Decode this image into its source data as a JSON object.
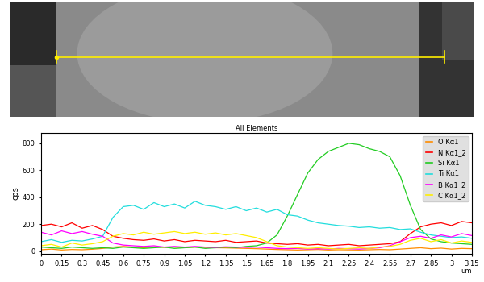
{
  "chart_data": {
    "type": "line",
    "title": "All Elements",
    "y_label": "cps",
    "x_label": "um",
    "x": [
      0,
      0.075,
      0.15,
      0.225,
      0.3,
      0.375,
      0.45,
      0.525,
      0.6,
      0.675,
      0.75,
      0.825,
      0.9,
      0.975,
      1.05,
      1.125,
      1.2,
      1.275,
      1.35,
      1.425,
      1.5,
      1.575,
      1.65,
      1.725,
      1.8,
      1.875,
      1.95,
      2.025,
      2.1,
      2.175,
      2.25,
      2.325,
      2.4,
      2.475,
      2.55,
      2.625,
      2.7,
      2.775,
      2.85,
      2.925,
      3,
      3.075,
      3.15
    ],
    "series": [
      {
        "name": "O Kα1",
        "color": "#ff8c00",
        "values": [
          10,
          15,
          8,
          12,
          10,
          14,
          20,
          30,
          35,
          30,
          25,
          32,
          28,
          30,
          26,
          30,
          28,
          25,
          24,
          22,
          20,
          18,
          15,
          12,
          10,
          8,
          10,
          12,
          8,
          10,
          9,
          8,
          10,
          12,
          10,
          15,
          20,
          25,
          18,
          22,
          15,
          20,
          18
        ]
      },
      {
        "name": "N Kα1_2",
        "color": "#ff0000",
        "values": [
          190,
          200,
          180,
          210,
          170,
          190,
          160,
          110,
          95,
          85,
          80,
          90,
          75,
          85,
          70,
          80,
          75,
          70,
          80,
          65,
          70,
          75,
          60,
          55,
          50,
          55,
          45,
          50,
          40,
          45,
          50,
          40,
          45,
          50,
          55,
          70,
          130,
          180,
          200,
          210,
          190,
          220,
          210
        ]
      },
      {
        "name": "Si Kα1",
        "color": "#22cc22",
        "values": [
          30,
          25,
          20,
          30,
          25,
          20,
          25,
          20,
          30,
          25,
          20,
          25,
          30,
          20,
          25,
          30,
          20,
          25,
          30,
          25,
          35,
          40,
          60,
          120,
          260,
          420,
          580,
          680,
          740,
          770,
          800,
          790,
          760,
          740,
          700,
          560,
          340,
          160,
          90,
          70,
          60,
          55,
          50
        ]
      },
      {
        "name": "Ti Kα1",
        "color": "#22dddd",
        "values": [
          70,
          85,
          65,
          80,
          75,
          90,
          110,
          250,
          330,
          340,
          310,
          360,
          330,
          350,
          320,
          370,
          340,
          330,
          310,
          330,
          300,
          320,
          290,
          310,
          270,
          260,
          230,
          210,
          200,
          190,
          185,
          175,
          180,
          170,
          175,
          160,
          165,
          140,
          120,
          110,
          100,
          105,
          95
        ]
      },
      {
        "name": "B Kα1_2",
        "color": "#ff00ff",
        "values": [
          140,
          120,
          150,
          130,
          145,
          125,
          110,
          60,
          45,
          40,
          35,
          40,
          30,
          35,
          30,
          35,
          30,
          28,
          32,
          30,
          28,
          30,
          25,
          20,
          18,
          20,
          15,
          18,
          15,
          20,
          18,
          15,
          20,
          25,
          40,
          70,
          100,
          110,
          95,
          120,
          105,
          130,
          115
        ]
      },
      {
        "name": "C Kα1_2",
        "color": "#ffee00",
        "values": [
          40,
          50,
          30,
          60,
          45,
          55,
          70,
          110,
          130,
          120,
          140,
          125,
          135,
          145,
          130,
          140,
          125,
          135,
          120,
          130,
          115,
          100,
          70,
          40,
          30,
          25,
          20,
          25,
          20,
          15,
          20,
          25,
          20,
          30,
          35,
          50,
          80,
          95,
          70,
          85,
          60,
          75,
          65
        ]
      }
    ],
    "xlim": [
      0,
      3.15
    ],
    "xticks": [
      0,
      0.15,
      0.3,
      0.45,
      0.6,
      0.75,
      0.9,
      1.05,
      1.2,
      1.35,
      1.5,
      1.65,
      1.8,
      1.95,
      2.1,
      2.25,
      2.4,
      2.55,
      2.7,
      2.85,
      3,
      3.15
    ],
    "ylim": [
      -20,
      880
    ],
    "yticks": [
      0,
      200,
      400,
      600,
      800
    ],
    "legend": "upper right"
  }
}
